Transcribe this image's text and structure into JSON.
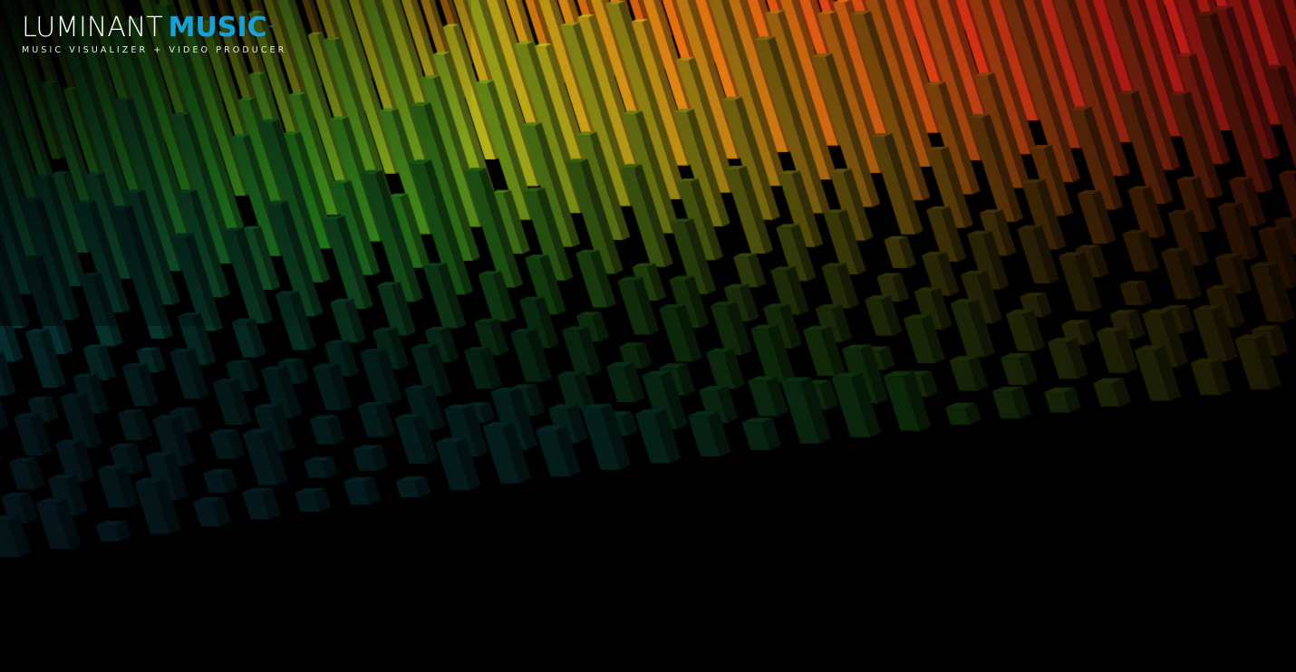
{
  "logo": {
    "word_1": "LUMINANT",
    "word_2": "MUSIC",
    "trademark": "™",
    "subtitle": "MUSIC VISUALIZER + VIDEO PRODUCER"
  },
  "visualizer": {
    "style": "3d-bar-grid",
    "colors": {
      "background": "#000000",
      "cyan": "#1fa7c9",
      "teal": "#14b49a",
      "green": "#3ddc2f",
      "yellow": "#c8c81e",
      "orange": "#f07a12",
      "red": "#e8221a",
      "logo_accent": "#1aa0d8"
    }
  }
}
